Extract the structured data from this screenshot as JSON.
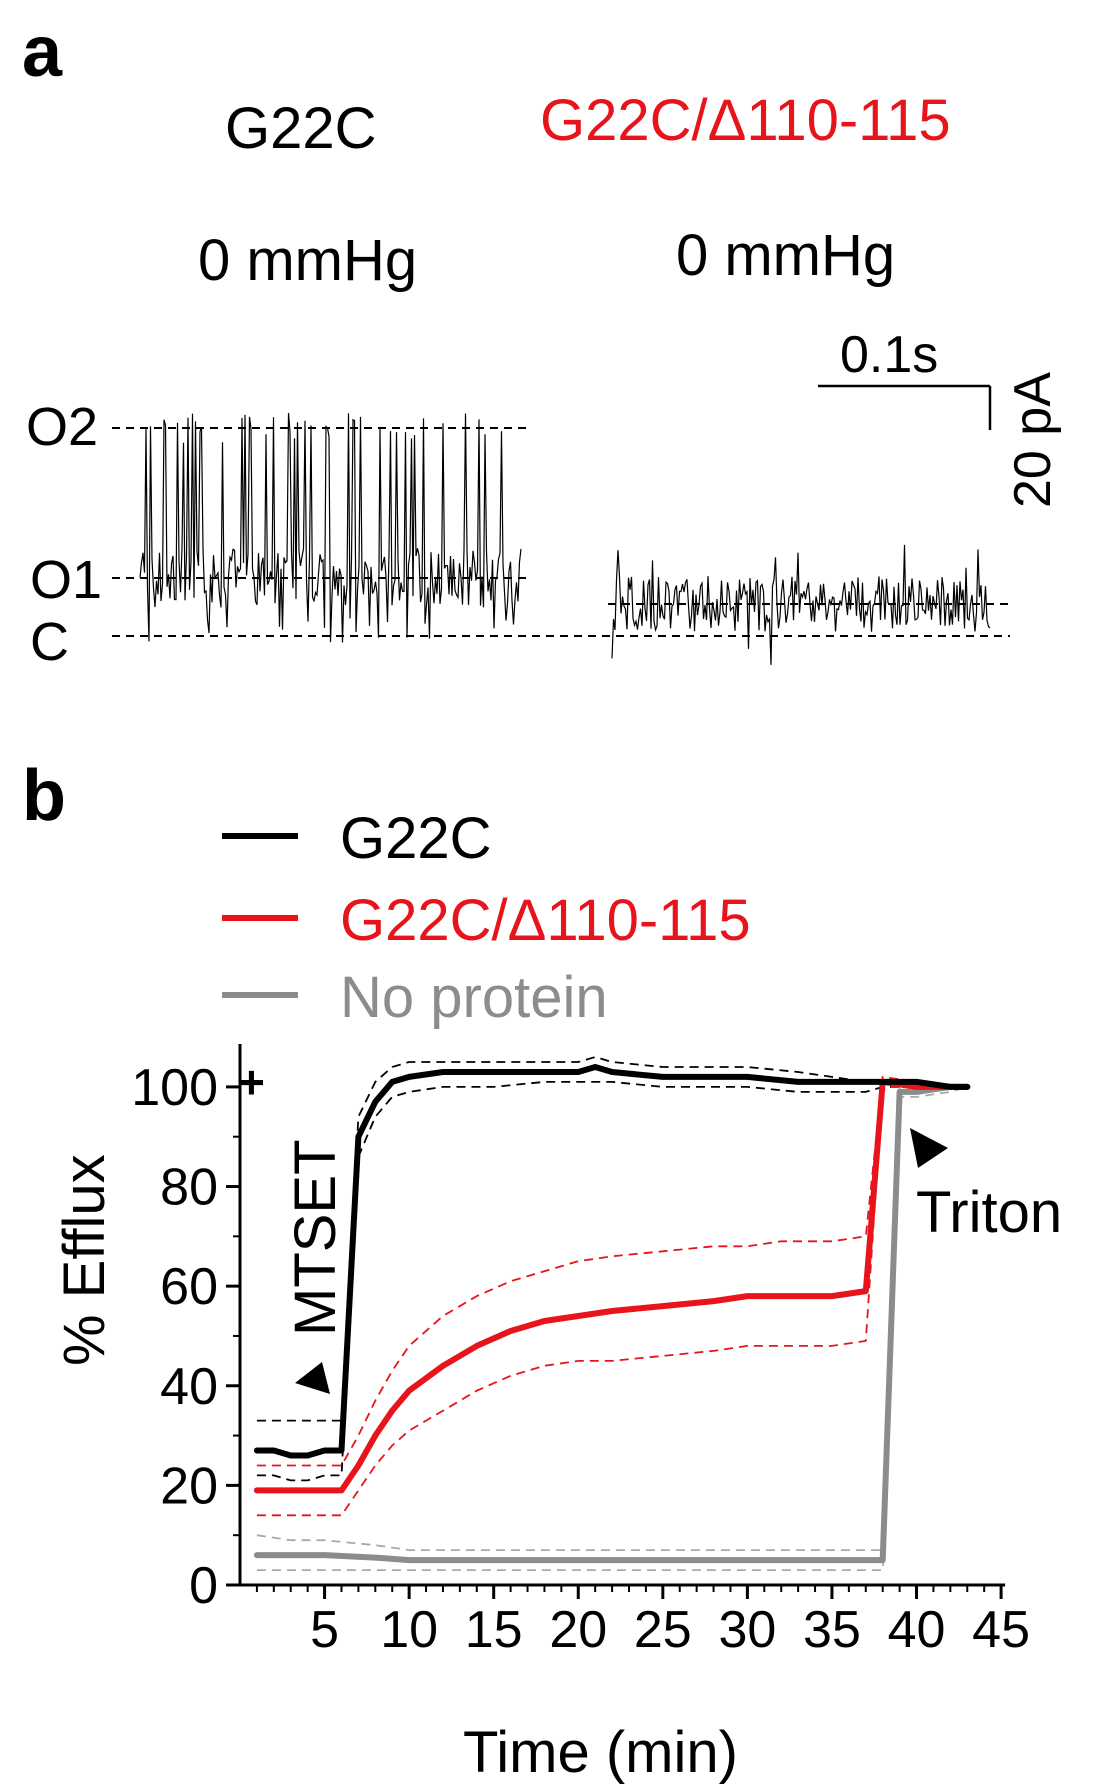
{
  "panel_a": {
    "letter": "a",
    "title_left": "G22C",
    "title_right": "G22C/Δ110-115",
    "title_right_color": "#e8141c",
    "pressure_left": "0 mmHg",
    "pressure_right": "0 mmHg",
    "scale_time": "0.1s",
    "scale_current": "20 pA",
    "level_o2": "O2",
    "level_o1": "O1",
    "level_c": "C"
  },
  "panel_b": {
    "letter": "b",
    "legend": [
      {
        "name": "G22C",
        "color": "#000000"
      },
      {
        "name": "G22C/Δ110-115",
        "color": "#e8141c"
      },
      {
        "name": "No protein",
        "color": "#8c8c8c"
      }
    ],
    "plus_mark": "+",
    "annotation_mtset": "MTSET",
    "annotation_triton": "Triton"
  },
  "chart_data": {
    "type": "line",
    "xlabel": "Time (min)",
    "ylabel": "% Efflux",
    "xlim": [
      0,
      46
    ],
    "ylim": [
      0,
      105
    ],
    "xticks": [
      5,
      10,
      15,
      20,
      25,
      30,
      35,
      40,
      45
    ],
    "yticks": [
      0,
      20,
      40,
      60,
      80,
      100
    ],
    "series": [
      {
        "name": "G22C",
        "color": "#000000",
        "x": [
          1,
          2,
          3,
          4,
          5,
          6,
          7,
          8,
          9,
          10,
          12,
          15,
          18,
          20,
          21,
          22,
          25,
          28,
          30,
          33,
          35,
          37,
          38,
          40,
          42,
          43
        ],
        "y": [
          27,
          27,
          26,
          26,
          27,
          27,
          90,
          97,
          101,
          102,
          103,
          103,
          103,
          103,
          104,
          103,
          102,
          102,
          102,
          101,
          101,
          101,
          101,
          101,
          100,
          100
        ],
        "upper": [
          33,
          33,
          33,
          33,
          33,
          33,
          94,
          101,
          104,
          105,
          105,
          105,
          105,
          105,
          106,
          105,
          104,
          104,
          104,
          103,
          102,
          101,
          101,
          101,
          100,
          100
        ],
        "lower": [
          22,
          22,
          21,
          21,
          22,
          22,
          86,
          94,
          98,
          99,
          100,
          100,
          101,
          101,
          101,
          101,
          100,
          100,
          100,
          99,
          99,
          99,
          100,
          100,
          100,
          100
        ]
      },
      {
        "name": "G22C/Δ110-115",
        "color": "#e8141c",
        "x": [
          1,
          2,
          3,
          4,
          5,
          6,
          7,
          8,
          9,
          10,
          12,
          14,
          16,
          18,
          20,
          22,
          25,
          28,
          30,
          32,
          35,
          37,
          38,
          40,
          42,
          43
        ],
        "y": [
          19,
          19,
          19,
          19,
          19,
          19,
          24,
          30,
          35,
          39,
          44,
          48,
          51,
          53,
          54,
          55,
          56,
          57,
          58,
          58,
          58,
          59,
          101,
          100,
          100,
          100
        ],
        "upper": [
          24,
          24,
          24,
          24,
          24,
          24,
          30,
          37,
          43,
          48,
          54,
          58,
          61,
          63,
          65,
          66,
          67,
          68,
          68,
          69,
          69,
          70,
          102,
          101,
          100,
          100
        ],
        "lower": [
          14,
          14,
          14,
          14,
          14,
          14,
          19,
          24,
          28,
          31,
          35,
          39,
          42,
          44,
          45,
          45,
          46,
          47,
          48,
          48,
          48,
          49,
          100,
          100,
          100,
          100
        ]
      },
      {
        "name": "No protein",
        "color": "#8c8c8c",
        "x": [
          1,
          3,
          5,
          8,
          10,
          15,
          20,
          25,
          30,
          35,
          38,
          39,
          40,
          42,
          43
        ],
        "y": [
          6,
          6,
          6,
          5.5,
          5,
          5,
          5,
          5,
          5,
          5,
          5,
          99,
          99,
          100,
          100
        ],
        "upper": [
          10,
          9,
          9,
          8,
          7,
          7,
          7,
          7,
          7,
          7,
          7,
          100,
          100,
          100,
          100
        ],
        "lower": [
          3,
          3,
          3,
          3,
          3,
          3,
          3,
          3,
          3,
          3,
          3,
          98,
          98,
          99,
          100
        ]
      }
    ]
  }
}
